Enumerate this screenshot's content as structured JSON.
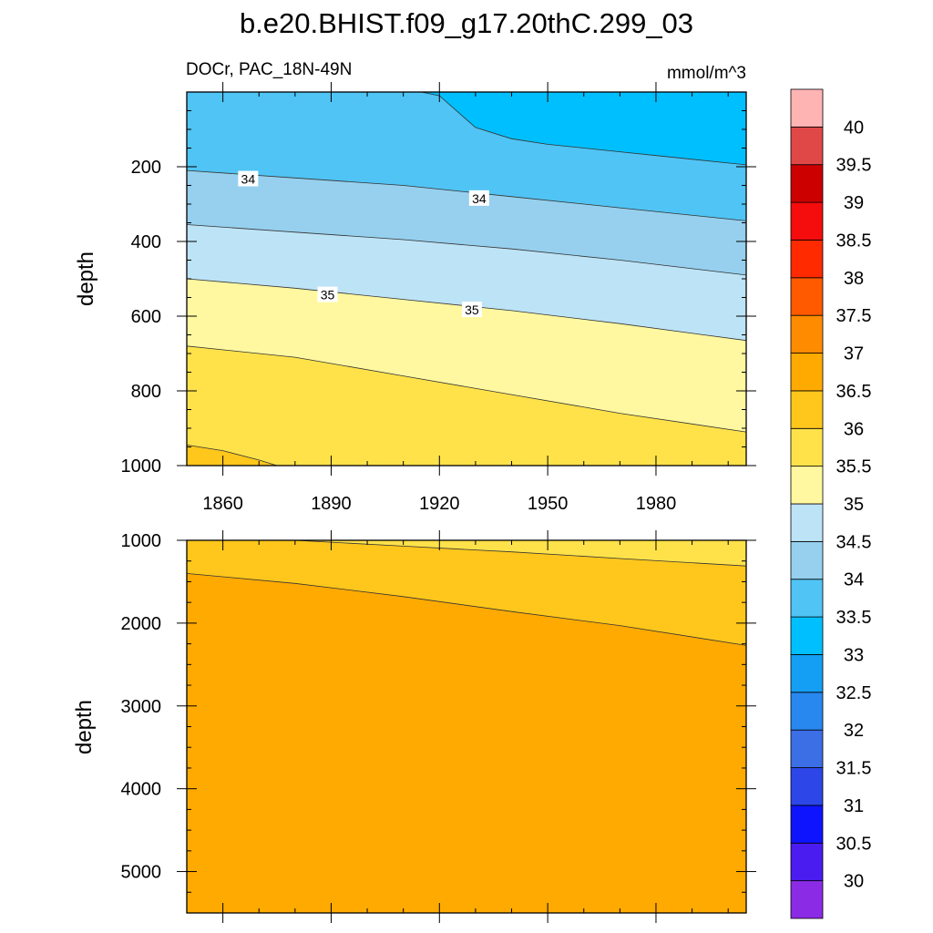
{
  "title": "b.e20.BHIST.f09_g17.20thC.299_03",
  "chart_data": [
    {
      "type": "heatmap",
      "panel": "upper",
      "left_label": "DOCr, PAC_18N-49N",
      "right_label": "mmol/m^3",
      "ylabel": "depth",
      "xlabel": "",
      "x_range": [
        1850,
        2005
      ],
      "x_ticks": [
        1860,
        1890,
        1920,
        1950,
        1980
      ],
      "y_range": [
        0,
        1000
      ],
      "y_inverted": true,
      "y_ticks": [
        200,
        400,
        600,
        800,
        1000
      ],
      "contour_labels": [
        {
          "text": "34",
          "x": 1867,
          "y": 233
        },
        {
          "text": "34",
          "x": 1931,
          "y": 285
        },
        {
          "text": "35",
          "x": 1889,
          "y": 543
        },
        {
          "text": "35",
          "x": 1929,
          "y": 583
        }
      ],
      "bands": [
        {
          "upper": 33.5,
          "color": "#00bfff",
          "boundary_x": [
            1915,
            1920,
            1930,
            1940,
            1950,
            1960,
            1970,
            1980,
            1990,
            2000,
            2005
          ],
          "boundary_depth": [
            0,
            10,
            95,
            125,
            140,
            150,
            160,
            170,
            180,
            190,
            195
          ]
        },
        {
          "upper": 34.0,
          "color": "#50c4f4",
          "boundary_x": [
            1850,
            1880,
            1910,
            1940,
            1970,
            2005
          ],
          "boundary_depth": [
            210,
            230,
            250,
            280,
            310,
            345
          ]
        },
        {
          "upper": 34.5,
          "color": "#96d0ee",
          "boundary_x": [
            1850,
            1880,
            1910,
            1940,
            1970,
            2005
          ],
          "boundary_depth": [
            355,
            375,
            395,
            420,
            450,
            490
          ]
        },
        {
          "upper": 35.0,
          "color": "#bde3f6",
          "boundary_x": [
            1850,
            1880,
            1910,
            1940,
            1970,
            2005
          ],
          "boundary_depth": [
            500,
            525,
            555,
            585,
            620,
            665
          ]
        },
        {
          "upper": 35.5,
          "color": "#fff8a0",
          "boundary_x": [
            1850,
            1880,
            1910,
            1940,
            1970,
            2005
          ],
          "boundary_depth": [
            680,
            710,
            760,
            810,
            860,
            910
          ]
        },
        {
          "upper": 36.0,
          "color": "#ffe24a",
          "boundary_x": [
            1850,
            1860,
            1870,
            1875
          ],
          "boundary_depth": [
            945,
            960,
            985,
            1000
          ]
        },
        {
          "upper": 36.5,
          "color": "#ffc71c",
          "boundary_x": [],
          "boundary_depth": []
        }
      ]
    },
    {
      "type": "heatmap",
      "panel": "lower",
      "ylabel": "depth",
      "xlabel": "",
      "x_range": [
        1850,
        2005
      ],
      "y_range": [
        1000,
        5500
      ],
      "y_inverted": true,
      "y_ticks": [
        1000,
        2000,
        3000,
        4000,
        5000
      ],
      "bands": [
        {
          "upper": 36.0,
          "color": "#ffe24a",
          "boundary_x": [
            1880,
            1910,
            1940,
            1970,
            2005
          ],
          "boundary_depth": [
            1000,
            1070,
            1140,
            1220,
            1310
          ]
        },
        {
          "upper": 36.5,
          "color": "#ffc71c",
          "boundary_x": [
            1850,
            1880,
            1910,
            1940,
            1970,
            2005
          ],
          "boundary_depth": [
            1400,
            1520,
            1680,
            1860,
            2030,
            2270
          ]
        },
        {
          "upper": 37.0,
          "color": "#ffaa00",
          "boundary_x": [],
          "boundary_depth": []
        }
      ]
    }
  ],
  "colorbar": {
    "labels": [
      "30",
      "30.5",
      "31",
      "31.5",
      "32",
      "32.5",
      "33",
      "33.5",
      "34",
      "34.5",
      "35",
      "35.5",
      "36",
      "36.5",
      "37",
      "37.5",
      "38",
      "38.5",
      "39",
      "39.5",
      "40"
    ],
    "colors": [
      "#8c2be6",
      "#4a1cf0",
      "#0f14ff",
      "#2d46e8",
      "#3c6ee6",
      "#2888f0",
      "#149ff5",
      "#00bfff",
      "#50c4f4",
      "#96d0ee",
      "#bde3f6",
      "#fff8a0",
      "#ffe24a",
      "#ffc71c",
      "#ffaa00",
      "#ff8c00",
      "#ff5a00",
      "#ff2a00",
      "#f50c0c",
      "#cd0000",
      "#e04848",
      "#ffb4b4"
    ]
  }
}
